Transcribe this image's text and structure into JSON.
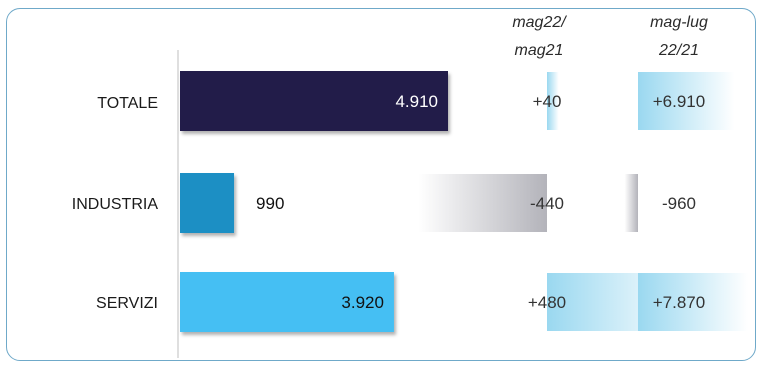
{
  "chart_data": {
    "type": "bar",
    "categories": [
      "TOTALE",
      "INDUSTRIA",
      "SERVIZI"
    ],
    "values": [
      4910,
      990,
      3920
    ],
    "value_labels": [
      "4.910",
      "990",
      "3.920"
    ],
    "bar_colors": [
      "#221b48",
      "#1f8fc4",
      "#45bff3"
    ],
    "columns": [
      {
        "header_line1": "mag22/",
        "header_line2": "mag21",
        "values": [
          40,
          -440,
          480
        ],
        "labels": [
          "+40",
          "-440",
          "+480"
        ]
      },
      {
        "header_line1": "mag-lug",
        "header_line2": "22/21",
        "values": [
          6910,
          -960,
          7870
        ],
        "labels": [
          "+6.910",
          "-960",
          "+7.870"
        ]
      }
    ],
    "positive_color": "#9ad8f0",
    "negative_color": "#b9b9bf"
  }
}
